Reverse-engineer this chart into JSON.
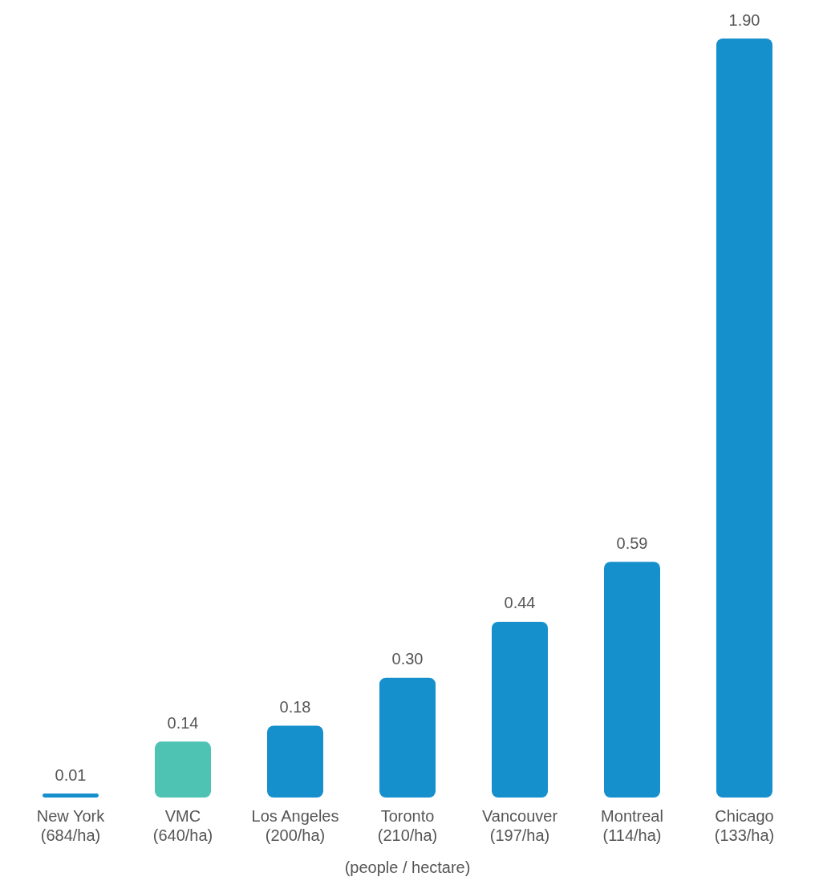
{
  "chart_data": {
    "type": "bar",
    "xlabel": "(people / hectare)",
    "categories": [
      "New York\n(684/ha)",
      "VMC\n(640/ha)",
      "Los Angeles\n(200/ha)",
      "Toronto\n(210/ha)",
      "Vancouver\n(197/ha)",
      "Montreal\n(114/ha)",
      "Chicago\n(133/ha)"
    ],
    "values": [
      0.01,
      0.14,
      0.18,
      0.3,
      0.44,
      0.59,
      1.9
    ],
    "colors": [
      "#1590cc",
      "#4fc3b3",
      "#1590cc",
      "#1590cc",
      "#1590cc",
      "#1590cc",
      "#1590cc"
    ],
    "value_labels": [
      "0.01",
      "0.14",
      "0.18",
      "0.30",
      "0.44",
      "0.59",
      "1.90"
    ],
    "grid": false,
    "legend": false
  }
}
